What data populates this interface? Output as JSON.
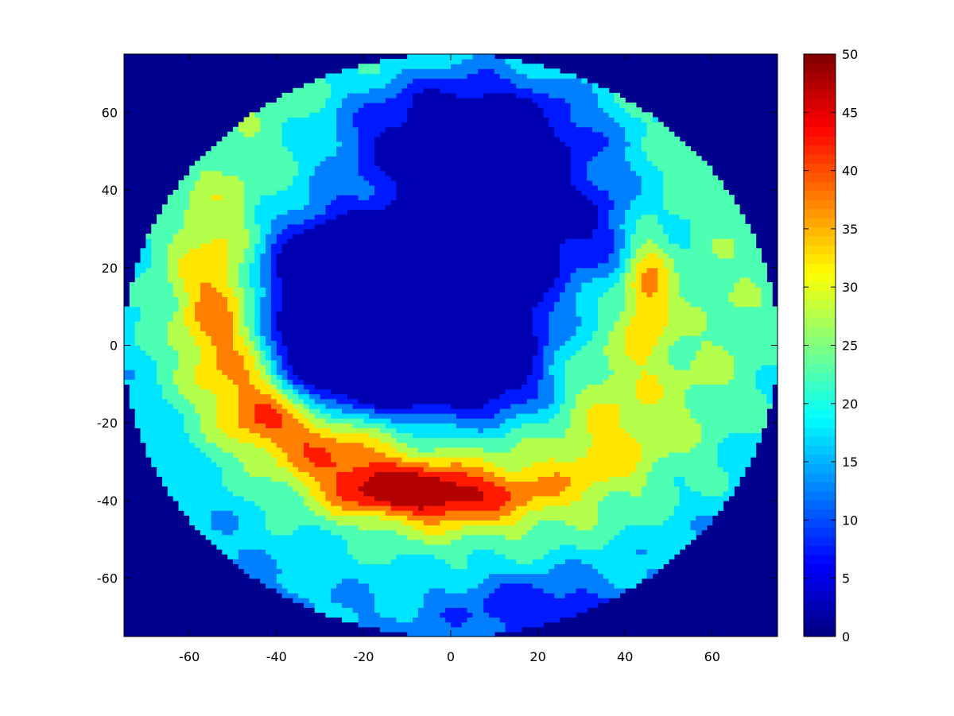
{
  "chart_data": {
    "type": "heatmap",
    "title": "",
    "xlabel": "",
    "ylabel": "",
    "xlim": [
      -75,
      75
    ],
    "ylim": [
      -75,
      75
    ],
    "x_ticks": [
      -60,
      -40,
      -20,
      0,
      20,
      40,
      60
    ],
    "y_ticks": [
      60,
      40,
      20,
      0,
      -20,
      -40,
      -60
    ],
    "x_tick_labels": [
      "-60",
      "-40",
      "-20",
      "0",
      "20",
      "40",
      "60"
    ],
    "y_tick_labels": [
      "60",
      "40",
      "20",
      "0",
      "-20",
      "-40",
      "-60"
    ],
    "colorbar": {
      "range": [
        0,
        50
      ],
      "ticks": [
        50,
        45,
        40,
        35,
        30,
        25,
        20,
        15,
        10,
        5,
        0
      ],
      "tick_labels": [
        "50",
        "45",
        "40",
        "35",
        "30",
        "25",
        "20",
        "15",
        "10",
        "5",
        "0"
      ],
      "colormap": "jet"
    },
    "contour_levels": [
      0,
      5,
      10,
      15,
      20,
      25,
      30,
      35,
      40,
      45,
      50
    ],
    "domain": {
      "shape": "disc",
      "center": [
        0,
        0
      ],
      "radius": 75,
      "outside_value": 0
    },
    "features": [
      {
        "kind": "low-plateau",
        "center": [
          -10,
          15
        ],
        "radius": [
          40,
          26
        ],
        "value": 0
      },
      {
        "kind": "ridge-arc",
        "center": [
          5,
          20
        ],
        "radius": 58,
        "from_deg": 160,
        "to_deg": 330,
        "peak": 45
      },
      {
        "kind": "high-lobe",
        "center": [
          45,
          15
        ],
        "radius": [
          7,
          20
        ],
        "peak": 37
      },
      {
        "kind": "high-core",
        "center": [
          -8,
          -40
        ],
        "radius": [
          22,
          4
        ],
        "peak": 45
      }
    ]
  },
  "colors": {
    "background": "#ffffff",
    "outside": "#00008f",
    "axis": "#000000"
  }
}
